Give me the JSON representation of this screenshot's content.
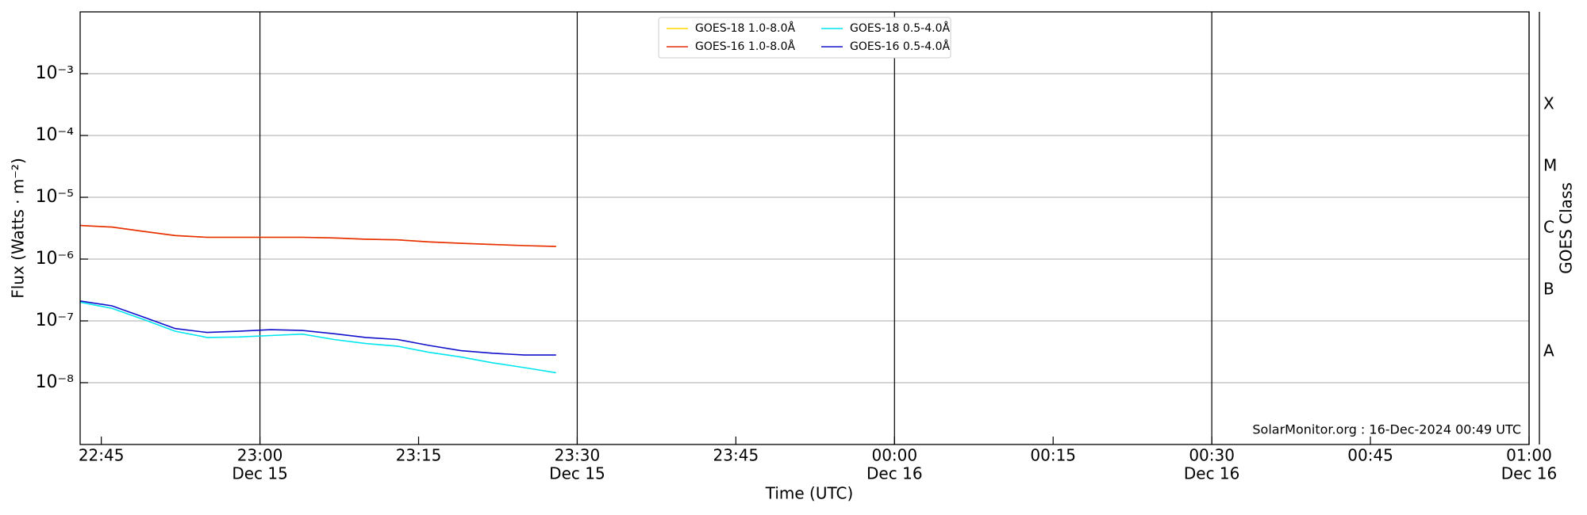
{
  "chart_data": {
    "type": "line",
    "xlabel": "Time (UTC)",
    "ylabel": "Flux (Watts · m⁻²)",
    "y2label": "GOES Class",
    "annotation": "SolarMonitor.org : 16-Dec-2024 00:49 UTC",
    "log_y": true,
    "legend": "upper center",
    "x": [
      "Dec 15 22:43",
      "Dec 15 22:46",
      "Dec 15 22:49",
      "Dec 15 22:52",
      "Dec 15 22:55",
      "Dec 15 22:58",
      "Dec 15 23:01",
      "Dec 15 23:04",
      "Dec 15 23:07",
      "Dec 15 23:10",
      "Dec 15 23:13",
      "Dec 15 23:16",
      "Dec 15 23:19",
      "Dec 15 23:22",
      "Dec 15 23:25",
      "Dec 15 23:28"
    ],
    "xlim": [
      "Dec 15 22:43",
      "Dec 16 01:00"
    ],
    "xticks": [
      {
        "value": "Dec 15 22:45",
        "label": "22:45"
      },
      {
        "value": "Dec 15 23:00",
        "label": "23:00",
        "date": "Dec 15"
      },
      {
        "value": "Dec 15 23:15",
        "label": "23:15"
      },
      {
        "value": "Dec 15 23:30",
        "label": "23:30",
        "date": "Dec 15"
      },
      {
        "value": "Dec 15 23:45",
        "label": "23:45"
      },
      {
        "value": "Dec 16 00:00",
        "label": "00:00",
        "date": "Dec 16"
      },
      {
        "value": "Dec 16 00:15",
        "label": "00:15"
      },
      {
        "value": "Dec 16 00:30",
        "label": "00:30",
        "date": "Dec 16"
      },
      {
        "value": "Dec 16 00:45",
        "label": "00:45"
      },
      {
        "value": "Dec 16 01:00",
        "label": "01:00",
        "date": "Dec 16"
      }
    ],
    "ylim": [
      1e-09,
      0.01
    ],
    "yticks": [
      {
        "value": 1e-08,
        "label": "10⁻⁸"
      },
      {
        "value": 1e-07,
        "label": "10⁻⁷"
      },
      {
        "value": 1e-06,
        "label": "10⁻⁶"
      },
      {
        "value": 1e-05,
        "label": "10⁻⁵"
      },
      {
        "value": 0.0001,
        "label": "10⁻⁴"
      },
      {
        "value": 0.001,
        "label": "10⁻³"
      }
    ],
    "y2lim": [
      1e-09,
      0.01
    ],
    "y2ticks": [
      {
        "value": 3.16e-08,
        "label": "A"
      },
      {
        "value": 3.16e-07,
        "label": "B"
      },
      {
        "value": 3.16e-06,
        "label": "C"
      },
      {
        "value": 3.16e-05,
        "label": "M"
      },
      {
        "value": 0.000316,
        "label": "X"
      }
    ],
    "grid": true,
    "series": [
      {
        "name": "GOES-18 1.0-8.0Å",
        "color": "#ffd700",
        "values": [
          3.5e-06,
          3.3e-06,
          2.8e-06,
          2.4e-06,
          2.25e-06,
          2.25e-06,
          2.25e-06,
          2.25e-06,
          2.2e-06,
          2.1e-06,
          2.05e-06,
          1.9e-06,
          1.8e-06,
          1.72e-06,
          1.65e-06,
          1.6e-06
        ]
      },
      {
        "name": "GOES-16 1.0-8.0Å",
        "color": "#e62a0a",
        "values": [
          3.5e-06,
          3.3e-06,
          2.8e-06,
          2.4e-06,
          2.25e-06,
          2.25e-06,
          2.25e-06,
          2.25e-06,
          2.2e-06,
          2.1e-06,
          2.05e-06,
          1.9e-06,
          1.8e-06,
          1.72e-06,
          1.65e-06,
          1.6e-06
        ]
      },
      {
        "name": "GOES-18 0.5-4.0Å",
        "color": "#00e5ee",
        "values": [
          2e-07,
          1.6e-07,
          1.05e-07,
          6.8e-08,
          5.4e-08,
          5.5e-08,
          5.8e-08,
          6.1e-08,
          5e-08,
          4.3e-08,
          3.9e-08,
          3.1e-08,
          2.6e-08,
          2.1e-08,
          1.75e-08,
          1.45e-08
        ]
      },
      {
        "name": "GOES-16 0.5-4.0Å",
        "color": "#1010cc",
        "values": [
          2.1e-07,
          1.75e-07,
          1.15e-07,
          7.5e-08,
          6.5e-08,
          6.8e-08,
          7.2e-08,
          7e-08,
          6.2e-08,
          5.4e-08,
          5e-08,
          4e-08,
          3.3e-08,
          3e-08,
          2.8e-08,
          2.8e-08
        ]
      }
    ]
  }
}
